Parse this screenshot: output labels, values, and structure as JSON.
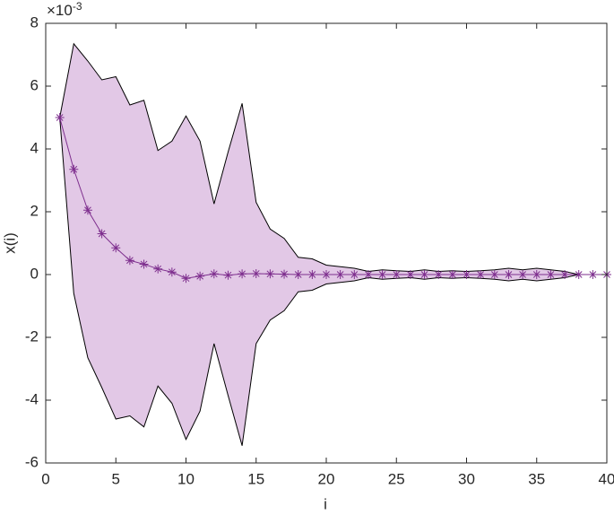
{
  "chart_data": {
    "type": "line",
    "x_label": "i",
    "y_label": "x(i)",
    "y_scale_label": {
      "base": "×10",
      "exponent": "-3"
    },
    "x": [
      1,
      2,
      3,
      4,
      5,
      6,
      7,
      8,
      9,
      10,
      11,
      12,
      13,
      14,
      15,
      16,
      17,
      18,
      19,
      20,
      21,
      22,
      23,
      24,
      25,
      26,
      27,
      28,
      29,
      30,
      31,
      32,
      33,
      34,
      35,
      36,
      37,
      38,
      39,
      40
    ],
    "series": [
      {
        "color": "#7e2f8e",
        "marker": "*",
        "values": [
          5.0,
          3.35,
          2.05,
          1.3,
          0.85,
          0.45,
          0.33,
          0.18,
          0.08,
          -0.12,
          -0.05,
          0.02,
          -0.02,
          0.02,
          0.03,
          0.02,
          0.01,
          0.0,
          0.0,
          0.0,
          0.0,
          0.0,
          0.0,
          0.0,
          0.0,
          0.0,
          0.0,
          0.0,
          0.0,
          0.0,
          0.0,
          0.0,
          0.0,
          0.0,
          0.0,
          0.0,
          0.0,
          0.0,
          0.0,
          0.0
        ]
      }
    ],
    "band": {
      "color": "#e2c8e6",
      "edge_color": "#000000",
      "upper": [
        5.0,
        7.35,
        6.8,
        6.2,
        6.3,
        5.4,
        5.55,
        3.95,
        4.25,
        5.05,
        4.25,
        2.25,
        3.9,
        5.45,
        2.3,
        1.45,
        1.15,
        0.55,
        0.5,
        0.3,
        0.25,
        0.2,
        0.1,
        0.15,
        0.12,
        0.1,
        0.15,
        0.1,
        0.12,
        0.1,
        0.12,
        0.15,
        0.2,
        0.15,
        0.2,
        0.15,
        0.1,
        0.0,
        0.0,
        0.0
      ],
      "lower": [
        5.0,
        -0.6,
        -2.65,
        -3.6,
        -4.6,
        -4.5,
        -4.85,
        -3.55,
        -4.1,
        -5.25,
        -4.35,
        -2.2,
        -3.85,
        -5.45,
        -2.2,
        -1.45,
        -1.15,
        -0.55,
        -0.5,
        -0.3,
        -0.25,
        -0.2,
        -0.1,
        -0.15,
        -0.12,
        -0.1,
        -0.15,
        -0.1,
        -0.12,
        -0.1,
        -0.12,
        -0.15,
        -0.2,
        -0.15,
        -0.2,
        -0.15,
        -0.1,
        0.0,
        0.0,
        0.0
      ]
    },
    "xlim": [
      0,
      40
    ],
    "xticks": [
      0,
      5,
      10,
      15,
      20,
      25,
      30,
      35,
      40
    ],
    "ylim": [
      -6,
      8
    ],
    "yticks": [
      -6,
      -4,
      -2,
      0,
      2,
      4,
      6,
      8
    ]
  }
}
